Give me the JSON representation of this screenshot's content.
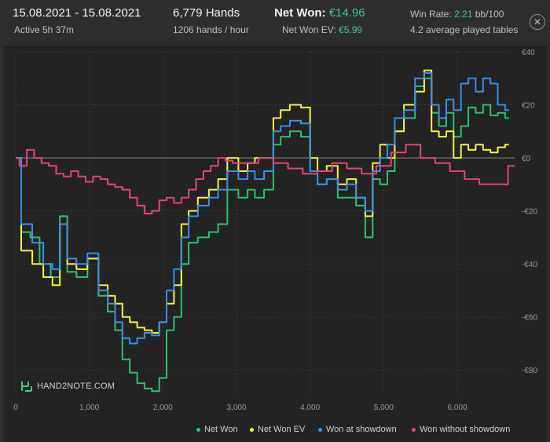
{
  "header": {
    "date_range": "15.08.2021 - 15.08.2021",
    "active": "Active 5h 37m",
    "hands": "6,779 Hands",
    "hands_per_hour": "1206 hands / hour",
    "net_won_label": "Net Won:",
    "net_won_value": "€14.96",
    "net_won_ev_label": "Net Won  EV:",
    "net_won_ev_value": "€5.99",
    "win_rate_label": "Win Rate:",
    "win_rate_value": "2.21",
    "win_rate_unit": "bb/100",
    "avg_tables": "4.2 average played tables",
    "close_symbol": "✕"
  },
  "logo_text": "HAND2NOTE.COM",
  "colors": {
    "net_won": "#2fbf71",
    "net_won_ev": "#f2f24a",
    "won_showdown": "#3a8ee6",
    "won_without_showdown": "#e0457b",
    "accent_green": "#3ec98a"
  },
  "chart_data": {
    "type": "line",
    "xlim": [
      0,
      6779
    ],
    "ylim": [
      -90,
      40
    ],
    "x_ticks": [
      0,
      1000,
      2000,
      3000,
      4000,
      5000,
      6000
    ],
    "x_tick_labels": [
      "0",
      "1,000",
      "2,000",
      "3,000",
      "4,000",
      "5,000",
      "6,000"
    ],
    "y_ticks": [
      40,
      20,
      0,
      -20,
      -40,
      -60,
      -80
    ],
    "y_tick_labels": [
      "€40",
      "€20",
      "€0",
      "-€20",
      "-€40",
      "-€60",
      "-€80"
    ],
    "grid": true,
    "legend_position": "bottom-right",
    "series": [
      {
        "name": "Net Won",
        "color": "#2fbf71",
        "x": [
          0,
          150,
          250,
          400,
          550,
          650,
          750,
          900,
          1050,
          1200,
          1300,
          1400,
          1500,
          1600,
          1700,
          1800,
          1900,
          2000,
          2100,
          2200,
          2300,
          2400,
          2550,
          2700,
          2800,
          2950,
          3100,
          3200,
          3300,
          3450,
          3550,
          3650,
          3800,
          3950,
          4050,
          4150,
          4300,
          4450,
          4550,
          4700,
          4800,
          4900,
          5000,
          5100,
          5200,
          5350,
          5500,
          5600,
          5700,
          5800,
          5900,
          6000,
          6100,
          6200,
          6300,
          6400,
          6500,
          6600,
          6700
        ],
        "y": [
          0,
          -28,
          -30,
          -40,
          -45,
          -22,
          -43,
          -45,
          -38,
          -52,
          -58,
          -65,
          -76,
          -81,
          -85,
          -87,
          -88,
          -83,
          -65,
          -60,
          -40,
          -32,
          -30,
          -28,
          -25,
          -12,
          -15,
          -12,
          -15,
          -12,
          5,
          8,
          10,
          8,
          -5,
          -10,
          -8,
          -15,
          -15,
          -18,
          -30,
          -8,
          -10,
          -5,
          10,
          15,
          27,
          30,
          17,
          12,
          17,
          8,
          12,
          19,
          17,
          20,
          16,
          17,
          15
        ]
      },
      {
        "name": "Net Won  EV",
        "color": "#f2f24a",
        "x": [
          0,
          150,
          300,
          450,
          550,
          650,
          750,
          900,
          1050,
          1200,
          1300,
          1400,
          1500,
          1600,
          1700,
          1800,
          1900,
          2000,
          2100,
          2200,
          2300,
          2400,
          2550,
          2700,
          2800,
          2950,
          3100,
          3200,
          3300,
          3450,
          3550,
          3650,
          3800,
          3950,
          4050,
          4150,
          4300,
          4450,
          4550,
          4700,
          4800,
          4900,
          5000,
          5100,
          5200,
          5350,
          5500,
          5600,
          5700,
          5800,
          5900,
          6000,
          6100,
          6200,
          6300,
          6400,
          6500,
          6600,
          6700
        ],
        "y": [
          0,
          -35,
          -40,
          -45,
          -48,
          -25,
          -40,
          -42,
          -38,
          -48,
          -52,
          -55,
          -60,
          -62,
          -64,
          -65,
          -66,
          -62,
          -55,
          -48,
          -25,
          -20,
          -15,
          -12,
          -8,
          0,
          -5,
          -2,
          0,
          0,
          15,
          18,
          20,
          19,
          0,
          -5,
          -3,
          -10,
          -8,
          -15,
          -22,
          -2,
          5,
          0,
          10,
          20,
          25,
          33,
          10,
          8,
          10,
          0,
          5,
          3,
          5,
          3,
          2,
          4,
          5
        ]
      },
      {
        "name": "Won at showdown",
        "color": "#3a8ee6",
        "x": [
          0,
          150,
          300,
          450,
          550,
          650,
          750,
          900,
          1050,
          1200,
          1300,
          1400,
          1500,
          1600,
          1700,
          1800,
          1900,
          2000,
          2100,
          2200,
          2300,
          2400,
          2550,
          2700,
          2800,
          2950,
          3100,
          3200,
          3300,
          3450,
          3550,
          3650,
          3800,
          3950,
          4050,
          4150,
          4300,
          4450,
          4550,
          4700,
          4800,
          4900,
          5000,
          5100,
          5200,
          5350,
          5500,
          5600,
          5700,
          5800,
          5900,
          6000,
          6100,
          6200,
          6300,
          6400,
          6500,
          6600,
          6700
        ],
        "y": [
          0,
          -25,
          -32,
          -40,
          -42,
          -25,
          -38,
          -40,
          -36,
          -50,
          -55,
          -62,
          -68,
          -70,
          -68,
          -66,
          -67,
          -62,
          -50,
          -42,
          -30,
          -22,
          -18,
          -15,
          -12,
          -5,
          -8,
          -5,
          -8,
          -5,
          10,
          12,
          14,
          13,
          -5,
          -10,
          -8,
          -12,
          -10,
          -15,
          -20,
          -5,
          0,
          5,
          15,
          18,
          30,
          32,
          20,
          15,
          22,
          18,
          28,
          30,
          25,
          30,
          28,
          20,
          18
        ]
      },
      {
        "name": "Won without showdown",
        "color": "#e0457b",
        "x": [
          0,
          100,
          200,
          300,
          400,
          500,
          600,
          700,
          800,
          900,
          1000,
          1100,
          1200,
          1300,
          1400,
          1500,
          1600,
          1700,
          1800,
          1900,
          2000,
          2100,
          2200,
          2300,
          2400,
          2500,
          2600,
          2700,
          2800,
          2900,
          3000,
          3200,
          3400,
          3600,
          3800,
          4000,
          4200,
          4400,
          4600,
          4800,
          5000,
          5200,
          5400,
          5600,
          5800,
          6000,
          6200,
          6400,
          6600,
          6779
        ],
        "y": [
          0,
          -3,
          3,
          0,
          -2,
          -3,
          -6,
          -7,
          -5,
          -7,
          -9,
          -7,
          -8,
          -10,
          -11,
          -12,
          -15,
          -18,
          -21,
          -20,
          -16,
          -15,
          -17,
          -15,
          -12,
          -8,
          -5,
          -3,
          0,
          -1,
          -2,
          -2,
          0,
          -2,
          -4,
          -6,
          -5,
          -2,
          -4,
          -6,
          -3,
          2,
          5,
          0,
          -2,
          -5,
          -8,
          -10,
          -10,
          -3
        ]
      }
    ]
  },
  "legend": [
    {
      "name": "Net Won",
      "color": "#2fbf71"
    },
    {
      "name": "Net Won  EV",
      "color": "#f2f24a"
    },
    {
      "name": "Won at showdown",
      "color": "#3a8ee6"
    },
    {
      "name": "Won without showdown",
      "color": "#e0457b"
    }
  ]
}
